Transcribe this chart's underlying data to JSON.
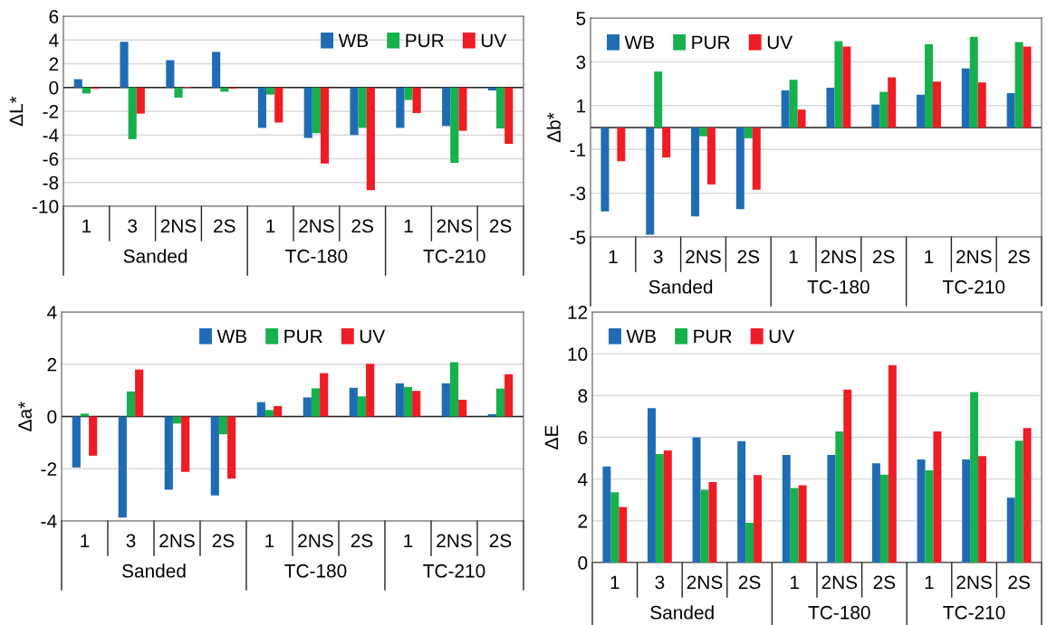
{
  "chart_data": [
    {
      "type": "bar",
      "ylabel": "ΔL*",
      "categories": [
        "1",
        "3",
        "2NS",
        "2S",
        "1",
        "2NS",
        "2S",
        "1",
        "2NS",
        "2S"
      ],
      "annotations": [
        "Sanded",
        "TC-180",
        "TC-210"
      ],
      "ylim": [
        -10,
        6
      ],
      "yticks": [
        -10,
        -8,
        -6,
        -4,
        -2,
        0,
        2,
        4,
        6
      ],
      "grid": "y",
      "legend": "top right",
      "series": [
        {
          "name": "WB",
          "color": "#1f6cb5",
          "values": [
            0.7,
            3.85,
            2.3,
            3.0,
            -3.4,
            -4.25,
            -4.0,
            -3.4,
            -3.25,
            -0.25
          ]
        },
        {
          "name": "PUR",
          "color": "#16b04c",
          "values": [
            -0.5,
            -4.35,
            -0.85,
            -0.35,
            -0.6,
            -3.85,
            -3.4,
            -1.05,
            -6.35,
            -3.45
          ]
        },
        {
          "name": "UV",
          "color": "#ee1c25",
          "values": [
            -0.1,
            -2.2,
            0.05,
            -0.1,
            -2.95,
            -6.4,
            -8.65,
            -2.15,
            -3.65,
            -4.75
          ]
        }
      ]
    },
    {
      "type": "bar",
      "ylabel": "Δb*",
      "categories": [
        "1",
        "3",
        "2NS",
        "2S",
        "1",
        "2NS",
        "2S",
        "1",
        "2NS",
        "2S"
      ],
      "annotations": [
        "Sanded",
        "TC-180",
        "TC-210"
      ],
      "ylim": [
        -5,
        5
      ],
      "yticks": [
        -5,
        -3,
        -1,
        1,
        3,
        5
      ],
      "grid": "y",
      "legend": "top left",
      "series": [
        {
          "name": "WB",
          "color": "#1f6cb5",
          "values": [
            -3.83,
            -4.9,
            -4.06,
            -3.73,
            1.7,
            1.82,
            1.05,
            1.5,
            2.7,
            1.57
          ]
        },
        {
          "name": "PUR",
          "color": "#16b04c",
          "values": [
            0,
            2.56,
            -0.4,
            -0.49,
            2.18,
            3.95,
            1.63,
            3.8,
            4.14,
            3.9
          ]
        },
        {
          "name": "UV",
          "color": "#ee1c25",
          "values": [
            -1.54,
            -1.37,
            -2.6,
            -2.84,
            0.82,
            3.7,
            2.29,
            2.1,
            2.06,
            3.7
          ]
        }
      ]
    },
    {
      "type": "bar",
      "ylabel": "Δa*",
      "categories": [
        "1",
        "3",
        "2NS",
        "2S",
        "1",
        "2NS",
        "2S",
        "1",
        "2NS",
        "2S"
      ],
      "annotations": [
        "Sanded",
        "TC-180",
        "TC-210"
      ],
      "ylim": [
        -4,
        4
      ],
      "yticks": [
        -4,
        -2,
        0,
        2,
        4
      ],
      "grid": "y",
      "legend": "top",
      "series": [
        {
          "name": "WB",
          "color": "#1f6cb5",
          "values": [
            -1.95,
            -3.87,
            -2.8,
            -3.02,
            0.55,
            0.73,
            1.1,
            1.27,
            1.27,
            0.09
          ]
        },
        {
          "name": "PUR",
          "color": "#16b04c",
          "values": [
            0.11,
            0.96,
            -0.27,
            -0.68,
            0.25,
            1.08,
            0.77,
            1.13,
            2.08,
            1.07
          ]
        },
        {
          "name": "UV",
          "color": "#ee1c25",
          "values": [
            -1.5,
            1.8,
            -2.12,
            -2.38,
            0.4,
            1.66,
            2.02,
            0.98,
            0.64,
            1.62
          ]
        }
      ]
    },
    {
      "type": "bar",
      "ylabel": "ΔE",
      "categories": [
        "1",
        "3",
        "2NS",
        "2S",
        "1",
        "2NS",
        "2S",
        "1",
        "2NS",
        "2S"
      ],
      "annotations": [
        "Sanded",
        "TC-180",
        "TC-210"
      ],
      "ylim": [
        0,
        12
      ],
      "yticks": [
        0,
        2,
        4,
        6,
        8,
        10,
        12
      ],
      "grid": "y",
      "legend": "top left",
      "series": [
        {
          "name": "WB",
          "color": "#1f6cb5",
          "values": [
            4.6,
            7.4,
            6.0,
            5.82,
            5.15,
            5.15,
            4.75,
            4.94,
            4.94,
            3.11
          ]
        },
        {
          "name": "PUR",
          "color": "#16b04c",
          "values": [
            3.37,
            5.2,
            3.49,
            1.91,
            3.57,
            6.28,
            4.21,
            4.42,
            8.17,
            5.84
          ]
        },
        {
          "name": "UV",
          "color": "#ee1c25",
          "values": [
            2.66,
            5.37,
            3.86,
            4.19,
            3.7,
            8.29,
            9.46,
            6.28,
            5.1,
            6.44
          ]
        }
      ]
    }
  ]
}
